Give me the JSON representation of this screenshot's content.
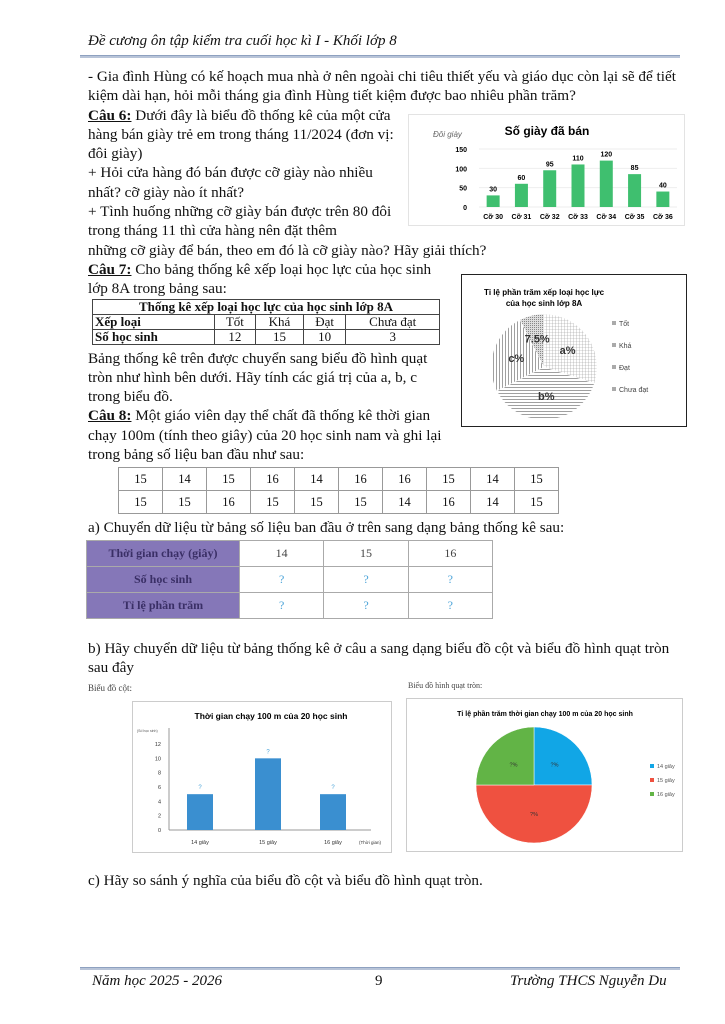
{
  "header": {
    "title": "Đề cương ôn tập kiểm tra cuối học kì I - Khối lớp 8"
  },
  "intro": "- Gia đình Hùng có kế hoạch mua nhà ở nên ngoài chi tiêu thiết yếu và giáo dục còn lại sẽ để tiết kiệm dài hạn, hỏi mỗi tháng gia đình Hùng tiết kiệm được bao nhiêu phần trăm?",
  "q6": {
    "label": "Câu 6:",
    "text": " Dưới đây là biểu đồ thống kê của một cửa hàng bán giày trẻ em trong tháng 11/2024 (đơn vị: đôi giày)",
    "b1": "+ Hỏi cửa hàng đó bán được cỡ giày nào nhiều nhất? cỡ giày nào ít nhất?",
    "b2": "+ Tình huống những cỡ giày bán được trên 80 đôi trong tháng 11 thì cửa hàng nên đặt thêm",
    "b2_cont": "những cỡ giày để bán, theo em đó là cỡ giày nào? Hãy giải thích?"
  },
  "q7": {
    "label": "Câu 7:",
    "text": " Cho bảng thống kê xếp loại học lực của học sinh lớp 8A trong bảng sau:",
    "table": {
      "caption": "Thống kê xếp loại học lực của học sinh lớp 8A",
      "row_headers": [
        "Xếp loại",
        "Số học sinh"
      ],
      "categories": [
        "Tốt",
        "Khá",
        "Đạt",
        "Chưa đạt"
      ],
      "counts": [
        "12",
        "15",
        "10",
        "3"
      ]
    },
    "after": "Bảng thống kê trên được chuyển sang biểu đồ hình quạt tròn như hình bên dưới. Hãy tính các giá trị của a, b, c trong biểu đồ."
  },
  "q8": {
    "label": "Câu 8:",
    "text": " Một giáo viên dạy thể chất đã thống kê thời gian chạy 100m (tính theo giây) của 20 học sinh nam và ghi lại trong bảng số liệu ban đầu như sau:",
    "raw": [
      [
        "15",
        "14",
        "15",
        "16",
        "14",
        "16",
        "16",
        "15",
        "14",
        "15"
      ],
      [
        "15",
        "15",
        "16",
        "15",
        "15",
        "15",
        "14",
        "16",
        "14",
        "15"
      ]
    ],
    "a": "a) Chuyển dữ liệu từ bảng số liệu ban đầu ở trên sang dạng bảng thống kê sau:",
    "stats": {
      "headers": [
        "Thời gian chạy (giây)",
        "Số học sinh",
        "Tỉ lệ phần trăm"
      ],
      "cols": [
        "14",
        "15",
        "16"
      ],
      "unknown": "?"
    },
    "b": "b) Hãy chuyển dữ liệu từ bảng thống kê ở câu a sang dạng biểu đồ cột và biểu đồ hình quạt tròn sau đây",
    "bar_caption": "Biểu đồ cột:",
    "pie_caption": "Biểu đồ hình quạt tròn:",
    "c": "c) Hãy so sánh ý nghĩa của biểu đồ cột và biểu đồ hình quạt tròn."
  },
  "footer": {
    "year": "Năm học 2025 - 2026",
    "page": "9",
    "school": "Trường THCS Nguyễn Du"
  },
  "chart_data": [
    {
      "type": "bar",
      "title": "Số giày đã bán",
      "ylabel": "Đôi giày",
      "categories": [
        "Cỡ 30",
        "Cỡ 31",
        "Cỡ 32",
        "Cỡ 33",
        "Cỡ 34",
        "Cỡ 35",
        "Cỡ 36"
      ],
      "values": [
        30,
        60,
        95,
        110,
        120,
        85,
        40
      ],
      "yticks": [
        "0",
        "50",
        "100",
        "150"
      ],
      "ylim": [
        0,
        150
      ],
      "color": "#3fbf6f"
    },
    {
      "type": "pie",
      "title": "Tỉ lệ phần trăm xếp loại học lực của học sinh lớp 8A",
      "legend": [
        "Tốt",
        "Khá",
        "Đạt",
        "Chưa đạt"
      ],
      "slice_labels": [
        "a%",
        "b%",
        "c%",
        "7.5%"
      ],
      "values": [
        30,
        37.5,
        25,
        7.5
      ],
      "legend_position": "right"
    },
    {
      "type": "bar",
      "title": "Thời gian chạy 100 m của 20 học sinh",
      "ylabel": "(Số học sinh)",
      "xlabel": "(Thời gian)",
      "categories": [
        "14 giây",
        "15 giây",
        "16 giây"
      ],
      "values": [
        5,
        10,
        5
      ],
      "data_labels": [
        "?",
        "?",
        "?"
      ],
      "yticks": [
        "0",
        "2",
        "4",
        "6",
        "8",
        "10",
        "12"
      ],
      "ylim": [
        0,
        12
      ],
      "color": "#3a8fd0"
    },
    {
      "type": "pie",
      "title": "Tỉ lệ phần trăm thời gian chạy 100 m của 20 học sinh",
      "legend": [
        "14 giây",
        "15 giây",
        "16 giây"
      ],
      "slice_labels": [
        "?%",
        "?%",
        "?%"
      ],
      "values": [
        25,
        50,
        25
      ],
      "colors": [
        "#11a6e6",
        "#ef5140",
        "#62b446"
      ],
      "legend_position": "right"
    }
  ]
}
